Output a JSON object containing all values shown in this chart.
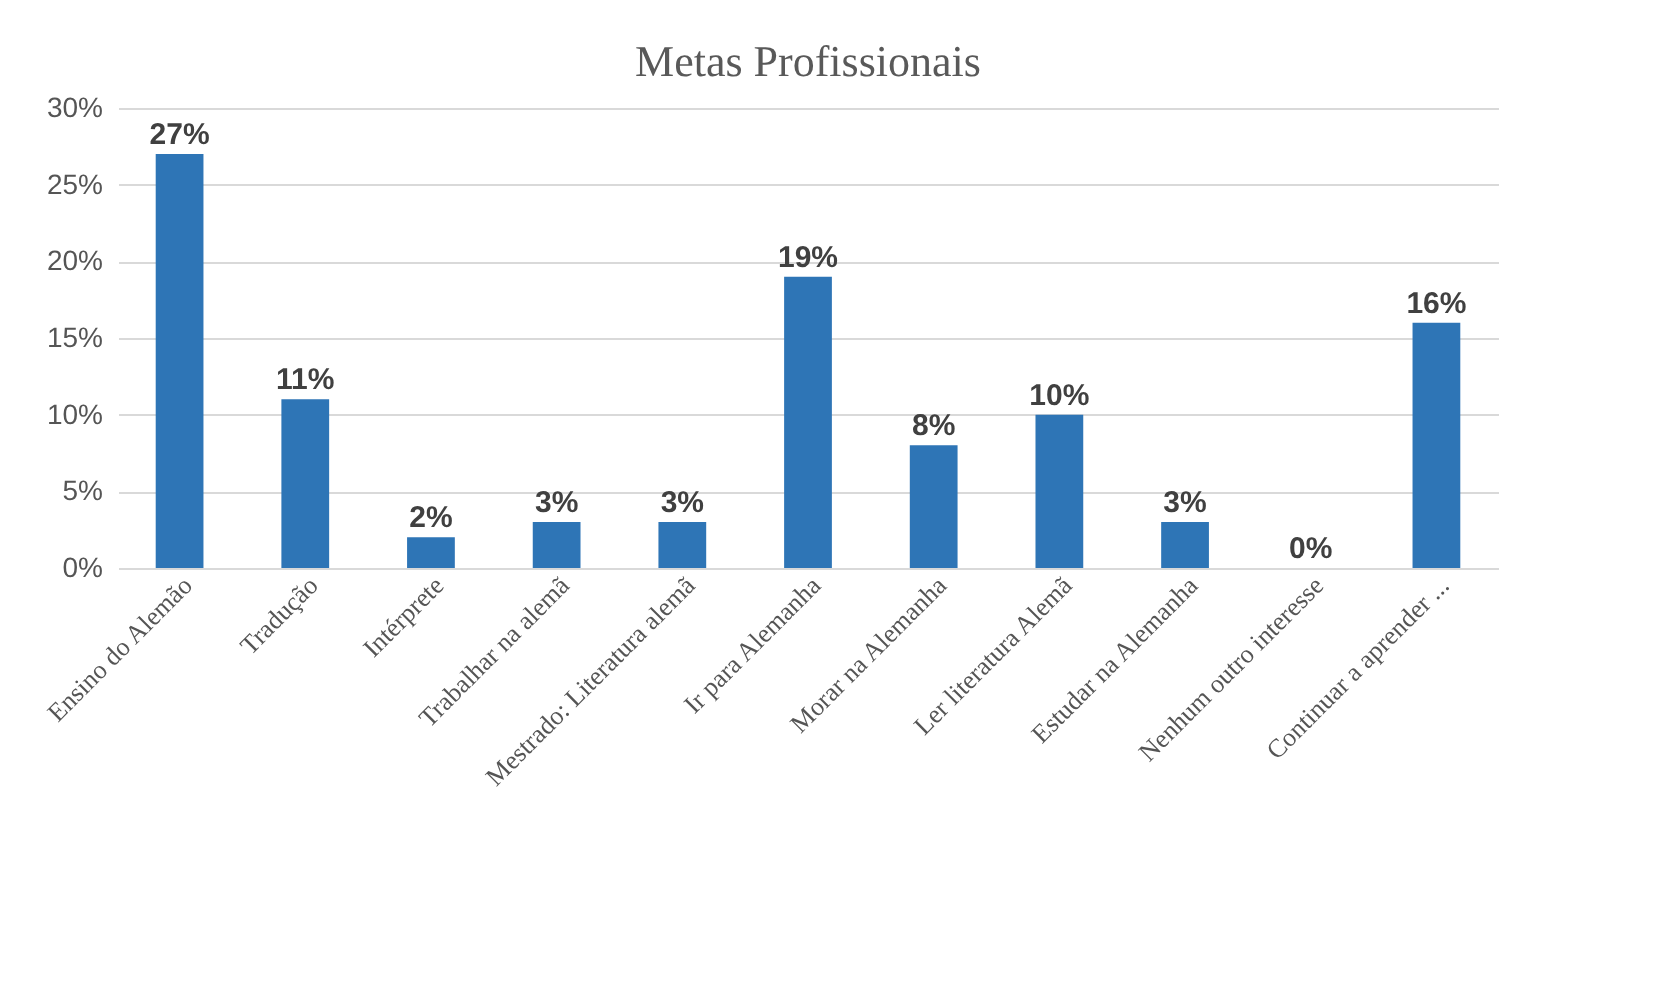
{
  "chart_data": {
    "type": "bar",
    "title": "Metas Profissionais",
    "categories": [
      "Ensino do Alemão",
      "Tradução",
      "Intérprete",
      "Trabalhar na alemã",
      "Mestrado: Literatura alemã",
      "Ir para Alemanha",
      "Morar na Alemanha",
      "Ler literatura Alemã",
      "Estudar na Alemanha",
      "Nenhum outro interesse",
      "Continuar a aprender ..."
    ],
    "values": [
      27,
      11,
      2,
      3,
      3,
      19,
      8,
      10,
      3,
      0,
      16
    ],
    "color": "#2e75b6",
    "ylim": [
      0,
      30
    ],
    "yticks": [
      {
        "value": 0,
        "label": "0%"
      },
      {
        "value": 5,
        "label": "5%"
      },
      {
        "value": 10,
        "label": "10%"
      },
      {
        "value": 15,
        "label": "15%"
      },
      {
        "value": 20,
        "label": "20%"
      },
      {
        "value": 25,
        "label": "25%"
      },
      {
        "value": 30,
        "label": "30%"
      }
    ],
    "value_labels": [
      "27%",
      "11%",
      "2%",
      "3%",
      "3%",
      "19%",
      "8%",
      "10%",
      "3%",
      "0%",
      "16%"
    ],
    "grid": "y"
  }
}
